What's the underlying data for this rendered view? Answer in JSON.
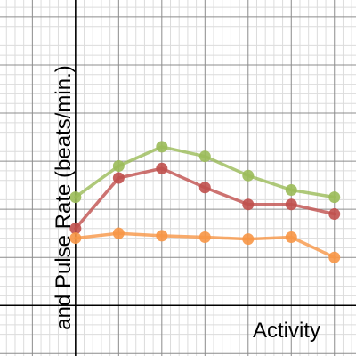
{
  "chart_data": {
    "type": "line",
    "xlabel": "Activity",
    "ylabel": "and Pulse Rate (beats/min.)",
    "xlim": [
      -1.75,
      6.5
    ],
    "ylim": [
      -1.05,
      6.35
    ],
    "x": [
      0,
      1,
      2,
      3,
      4,
      5,
      6
    ],
    "grid": true,
    "legend": "none",
    "series": [
      {
        "color": "#9bbb59",
        "values": [
          2.25,
          2.9,
          3.3,
          3.1,
          2.7,
          2.4,
          2.25
        ]
      },
      {
        "color": "#c0504d",
        "values": [
          1.6,
          2.65,
          2.85,
          2.45,
          2.1,
          2.1,
          1.9
        ]
      },
      {
        "color": "#f79646",
        "values": [
          1.4,
          1.5,
          1.45,
          1.42,
          1.38,
          1.42,
          1.0
        ]
      }
    ]
  }
}
